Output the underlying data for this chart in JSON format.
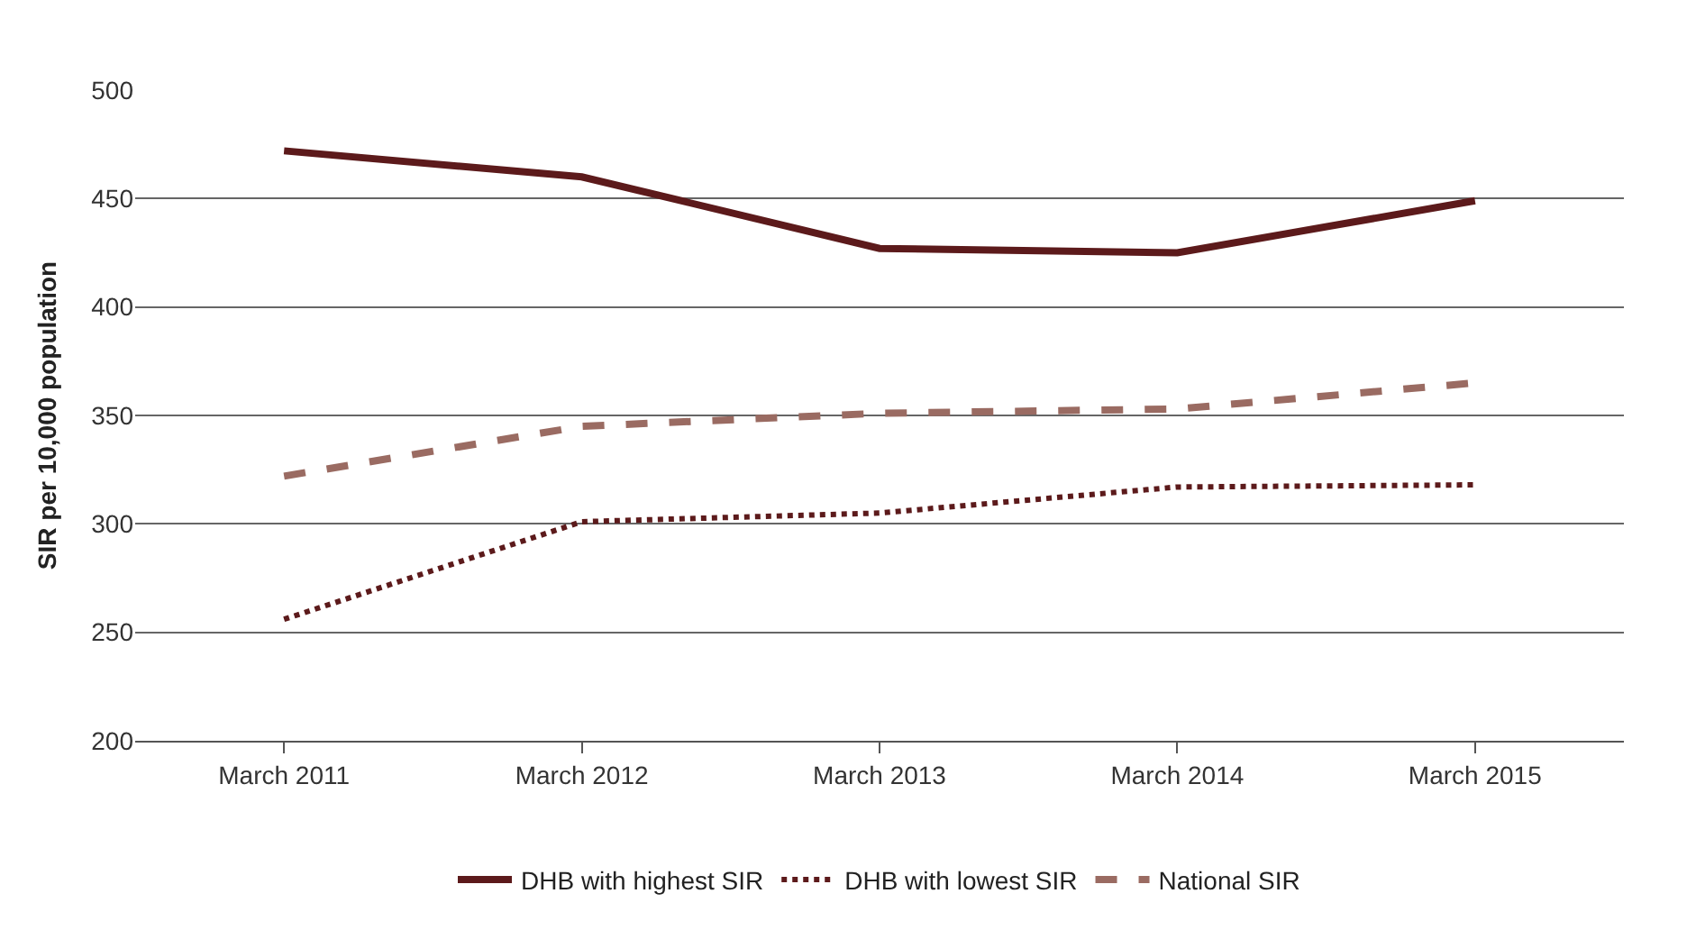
{
  "chart_data": {
    "type": "line",
    "ylabel": "SIR per 10,000 population",
    "categories": [
      "March 2011",
      "March 2012",
      "March 2013",
      "March 2014",
      "March 2015"
    ],
    "series": [
      {
        "name": "DHB with highest SIR",
        "color": "#5c1a1b",
        "values": [
          472,
          460,
          427,
          425,
          449
        ],
        "line_style": "solid"
      },
      {
        "name": "DHB with lowest SIR",
        "color": "#5c1a1b",
        "values": [
          256,
          301,
          305,
          317,
          318
        ],
        "line_style": "dotted"
      },
      {
        "name": "National SIR",
        "color": "#9a6b62",
        "values": [
          322,
          345,
          351,
          353,
          365
        ],
        "line_style": "dashed"
      }
    ],
    "ylim": [
      200,
      500
    ],
    "yticks": [
      200,
      250,
      300,
      350,
      400,
      450,
      500
    ],
    "grid": "y",
    "legend": "bottom"
  }
}
